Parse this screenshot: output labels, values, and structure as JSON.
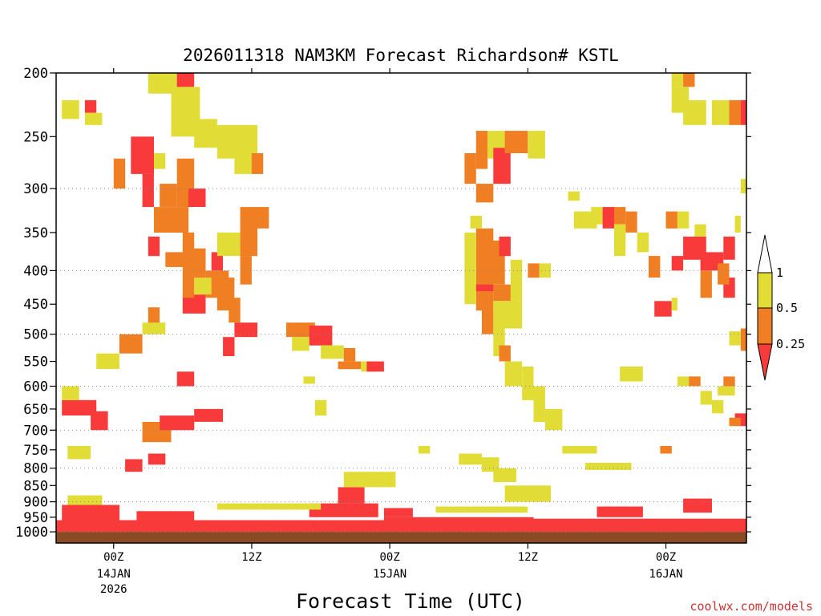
{
  "colors": {
    "red": "#f83a3a",
    "orange": "#ef7f22",
    "yellow": "#e1dc36",
    "white": "#ffffff",
    "ground": "#8b4a26",
    "credit": "#cc3333"
  },
  "chart_data": {
    "type": "heatmap",
    "title": "2026011318 NAM3KM Forecast Richardson# KSTL",
    "xlabel": "Forecast Time (UTC)",
    "ylabel": "",
    "credit": "coolwx.com/models",
    "y_scale": "log-pressure (inverted)",
    "ylim": [
      1040,
      200
    ],
    "xlim_hours": [
      19,
      79
    ],
    "y_ticks": [
      "200",
      "250",
      "300",
      "350",
      "400",
      "450",
      "500",
      "550",
      "600",
      "650",
      "700",
      "750",
      "800",
      "850",
      "900",
      "950",
      "1000"
    ],
    "x_ticks": [
      {
        "hour": 24,
        "label": "00Z",
        "date": "14JAN",
        "year": "2026"
      },
      {
        "hour": 36,
        "label": "12Z",
        "date": "",
        "year": ""
      },
      {
        "hour": 48,
        "label": "00Z",
        "date": "15JAN",
        "year": ""
      },
      {
        "hour": 60,
        "label": "12Z",
        "date": "",
        "year": ""
      },
      {
        "hour": 72,
        "label": "00Z",
        "date": "16JAN",
        "year": ""
      }
    ],
    "grid": "dotted horizontal at 300,400,500,600,700,800,900,1000 hPa",
    "legend": {
      "placement": "right",
      "labels": [
        "1",
        "0.5",
        "0.25"
      ],
      "bins": [
        {
          "range": "< 0.25",
          "color": "#f83a3a"
        },
        {
          "range": "0.25 - 0.5",
          "color": "#ef7f22"
        },
        {
          "range": "0.5 - 1",
          "color": "#e1dc36"
        },
        {
          "range": "> 1",
          "color": "#ffffff"
        }
      ]
    },
    "ground_pressure": 1000,
    "patches": [
      {
        "x0": 19.0,
        "x1": 47.5,
        "p0": 960,
        "p1": 1000,
        "c": "red"
      },
      {
        "x0": 47.5,
        "x1": 60.5,
        "p0": 950,
        "p1": 1000,
        "c": "red"
      },
      {
        "x0": 60.5,
        "x1": 79.0,
        "p0": 955,
        "p1": 1000,
        "c": "red"
      },
      {
        "x0": 19.5,
        "x1": 24.5,
        "p0": 910,
        "p1": 960,
        "c": "red"
      },
      {
        "x0": 26.0,
        "x1": 31.0,
        "p0": 930,
        "p1": 960,
        "c": "red"
      },
      {
        "x0": 41.0,
        "x1": 47.0,
        "p0": 905,
        "p1": 950,
        "c": "red"
      },
      {
        "x0": 43.5,
        "x1": 45.8,
        "p0": 855,
        "p1": 905,
        "c": "red"
      },
      {
        "x0": 47.5,
        "x1": 50.0,
        "p0": 920,
        "p1": 950,
        "c": "red"
      },
      {
        "x0": 66.0,
        "x1": 70.0,
        "p0": 915,
        "p1": 950,
        "c": "red"
      },
      {
        "x0": 73.5,
        "x1": 76.0,
        "p0": 890,
        "p1": 935,
        "c": "red"
      },
      {
        "x0": 20.0,
        "x1": 23.0,
        "p0": 880,
        "p1": 910,
        "c": "yellow"
      },
      {
        "x0": 33.0,
        "x1": 42.0,
        "p0": 905,
        "p1": 925,
        "c": "yellow"
      },
      {
        "x0": 52.0,
        "x1": 60.0,
        "p0": 915,
        "p1": 935,
        "c": "yellow"
      },
      {
        "x0": 44.0,
        "x1": 48.5,
        "p0": 810,
        "p1": 855,
        "c": "yellow"
      },
      {
        "x0": 58.0,
        "x1": 62.0,
        "p0": 850,
        "p1": 900,
        "c": "yellow"
      },
      {
        "x0": 19.5,
        "x1": 22.5,
        "p0": 630,
        "p1": 665,
        "c": "red"
      },
      {
        "x0": 22.0,
        "x1": 23.5,
        "p0": 655,
        "p1": 700,
        "c": "red"
      },
      {
        "x0": 19.5,
        "x1": 21.0,
        "p0": 600,
        "p1": 630,
        "c": "yellow"
      },
      {
        "x0": 20.0,
        "x1": 22.0,
        "p0": 740,
        "p1": 775,
        "c": "yellow"
      },
      {
        "x0": 25.0,
        "x1": 26.5,
        "p0": 775,
        "p1": 810,
        "c": "red"
      },
      {
        "x0": 26.5,
        "x1": 29.0,
        "p0": 680,
        "p1": 730,
        "c": "orange"
      },
      {
        "x0": 28.0,
        "x1": 31.0,
        "p0": 665,
        "p1": 700,
        "c": "red"
      },
      {
        "x0": 31.0,
        "x1": 33.5,
        "p0": 650,
        "p1": 680,
        "c": "red"
      },
      {
        "x0": 29.5,
        "x1": 31.0,
        "p0": 570,
        "p1": 600,
        "c": "red"
      },
      {
        "x0": 27.0,
        "x1": 28.5,
        "p0": 760,
        "p1": 790,
        "c": "red"
      },
      {
        "x0": 22.5,
        "x1": 24.5,
        "p0": 535,
        "p1": 565,
        "c": "yellow"
      },
      {
        "x0": 24.5,
        "x1": 26.5,
        "p0": 500,
        "p1": 535,
        "c": "orange"
      },
      {
        "x0": 27.0,
        "x1": 28.0,
        "p0": 455,
        "p1": 500,
        "c": "orange"
      },
      {
        "x0": 26.5,
        "x1": 28.5,
        "p0": 480,
        "p1": 500,
        "c": "yellow"
      },
      {
        "x0": 30.0,
        "x1": 32.0,
        "p0": 435,
        "p1": 465,
        "c": "red"
      },
      {
        "x0": 32.0,
        "x1": 34.0,
        "p0": 400,
        "p1": 440,
        "c": "orange"
      },
      {
        "x0": 31.0,
        "x1": 32.5,
        "p0": 410,
        "p1": 435,
        "c": "yellow"
      },
      {
        "x0": 30.5,
        "x1": 32.0,
        "p0": 370,
        "p1": 410,
        "c": "orange"
      },
      {
        "x0": 32.5,
        "x1": 33.5,
        "p0": 375,
        "p1": 400,
        "c": "red"
      },
      {
        "x0": 33.0,
        "x1": 34.5,
        "p0": 410,
        "p1": 460,
        "c": "orange"
      },
      {
        "x0": 34.5,
        "x1": 36.5,
        "p0": 480,
        "p1": 505,
        "c": "red"
      },
      {
        "x0": 33.5,
        "x1": 34.5,
        "p0": 505,
        "p1": 540,
        "c": "red"
      },
      {
        "x0": 34.0,
        "x1": 35.0,
        "p0": 440,
        "p1": 480,
        "c": "orange"
      },
      {
        "x0": 35.0,
        "x1": 36.5,
        "p0": 320,
        "p1": 380,
        "c": "orange"
      },
      {
        "x0": 36.0,
        "x1": 37.5,
        "p0": 320,
        "p1": 345,
        "c": "orange"
      },
      {
        "x0": 35.0,
        "x1": 36.0,
        "p0": 380,
        "p1": 420,
        "c": "orange"
      },
      {
        "x0": 33.0,
        "x1": 35.0,
        "p0": 350,
        "p1": 380,
        "c": "yellow"
      },
      {
        "x0": 25.5,
        "x1": 27.5,
        "p0": 250,
        "p1": 285,
        "c": "red"
      },
      {
        "x0": 24.0,
        "x1": 25.0,
        "p0": 270,
        "p1": 300,
        "c": "orange"
      },
      {
        "x0": 26.5,
        "x1": 27.5,
        "p0": 285,
        "p1": 320,
        "c": "red"
      },
      {
        "x0": 27.5,
        "x1": 30.5,
        "p0": 320,
        "p1": 350,
        "c": "orange"
      },
      {
        "x0": 28.0,
        "x1": 29.5,
        "p0": 295,
        "p1": 320,
        "c": "orange"
      },
      {
        "x0": 29.5,
        "x1": 31.0,
        "p0": 270,
        "p1": 320,
        "c": "orange"
      },
      {
        "x0": 30.0,
        "x1": 31.0,
        "p0": 350,
        "p1": 440,
        "c": "orange"
      },
      {
        "x0": 30.5,
        "x1": 32.0,
        "p0": 300,
        "p1": 320,
        "c": "red"
      },
      {
        "x0": 28.5,
        "x1": 30.5,
        "p0": 375,
        "p1": 395,
        "c": "orange"
      },
      {
        "x0": 27.0,
        "x1": 28.0,
        "p0": 355,
        "p1": 380,
        "c": "red"
      },
      {
        "x0": 21.5,
        "x1": 22.5,
        "p0": 220,
        "p1": 230,
        "c": "red"
      },
      {
        "x0": 19.5,
        "x1": 21.0,
        "p0": 220,
        "p1": 235,
        "c": "yellow"
      },
      {
        "x0": 21.5,
        "x1": 23.0,
        "p0": 230,
        "p1": 240,
        "c": "yellow"
      },
      {
        "x0": 27.0,
        "x1": 30.0,
        "p0": 200,
        "p1": 215,
        "c": "yellow"
      },
      {
        "x0": 29.0,
        "x1": 31.5,
        "p0": 210,
        "p1": 250,
        "c": "yellow"
      },
      {
        "x0": 29.5,
        "x1": 31.0,
        "p0": 200,
        "p1": 210,
        "c": "red"
      },
      {
        "x0": 31.0,
        "x1": 33.0,
        "p0": 235,
        "p1": 260,
        "c": "yellow"
      },
      {
        "x0": 33.0,
        "x1": 36.5,
        "p0": 240,
        "p1": 270,
        "c": "yellow"
      },
      {
        "x0": 34.5,
        "x1": 36.5,
        "p0": 260,
        "p1": 285,
        "c": "yellow"
      },
      {
        "x0": 36.0,
        "x1": 37.0,
        "p0": 265,
        "p1": 285,
        "c": "orange"
      },
      {
        "x0": 27.5,
        "x1": 28.5,
        "p0": 265,
        "p1": 280,
        "c": "yellow"
      },
      {
        "x0": 39.0,
        "x1": 41.5,
        "p0": 480,
        "p1": 505,
        "c": "orange"
      },
      {
        "x0": 39.5,
        "x1": 41.0,
        "p0": 505,
        "p1": 530,
        "c": "yellow"
      },
      {
        "x0": 41.0,
        "x1": 43.0,
        "p0": 485,
        "p1": 520,
        "c": "red"
      },
      {
        "x0": 42.0,
        "x1": 44.0,
        "p0": 520,
        "p1": 545,
        "c": "yellow"
      },
      {
        "x0": 44.0,
        "x1": 45.0,
        "p0": 525,
        "p1": 550,
        "c": "orange"
      },
      {
        "x0": 43.5,
        "x1": 45.5,
        "p0": 550,
        "p1": 565,
        "c": "orange"
      },
      {
        "x0": 45.5,
        "x1": 47.0,
        "p0": 550,
        "p1": 570,
        "c": "yellow"
      },
      {
        "x0": 46.0,
        "x1": 47.5,
        "p0": 550,
        "p1": 570,
        "c": "red"
      },
      {
        "x0": 41.5,
        "x1": 42.5,
        "p0": 630,
        "p1": 665,
        "c": "yellow"
      },
      {
        "x0": 40.5,
        "x1": 41.5,
        "p0": 580,
        "p1": 595,
        "c": "yellow"
      },
      {
        "x0": 55.5,
        "x1": 56.5,
        "p0": 245,
        "p1": 280,
        "c": "orange"
      },
      {
        "x0": 56.5,
        "x1": 58.0,
        "p0": 245,
        "p1": 270,
        "c": "yellow"
      },
      {
        "x0": 57.0,
        "x1": 58.5,
        "p0": 260,
        "p1": 295,
        "c": "red"
      },
      {
        "x0": 58.0,
        "x1": 60.0,
        "p0": 245,
        "p1": 265,
        "c": "orange"
      },
      {
        "x0": 60.0,
        "x1": 61.5,
        "p0": 245,
        "p1": 270,
        "c": "yellow"
      },
      {
        "x0": 54.5,
        "x1": 55.5,
        "p0": 265,
        "p1": 295,
        "c": "orange"
      },
      {
        "x0": 55.5,
        "x1": 57.0,
        "p0": 295,
        "p1": 315,
        "c": "orange"
      },
      {
        "x0": 55.5,
        "x1": 57.0,
        "p0": 345,
        "p1": 460,
        "c": "orange"
      },
      {
        "x0": 56.0,
        "x1": 58.0,
        "p0": 360,
        "p1": 420,
        "c": "orange"
      },
      {
        "x0": 57.0,
        "x1": 59.0,
        "p0": 420,
        "p1": 445,
        "c": "orange"
      },
      {
        "x0": 55.0,
        "x1": 57.0,
        "p0": 420,
        "p1": 430,
        "c": "red"
      },
      {
        "x0": 57.5,
        "x1": 58.5,
        "p0": 355,
        "p1": 380,
        "c": "red"
      },
      {
        "x0": 54.5,
        "x1": 55.5,
        "p0": 350,
        "p1": 450,
        "c": "yellow"
      },
      {
        "x0": 57.0,
        "x1": 59.5,
        "p0": 445,
        "p1": 490,
        "c": "yellow"
      },
      {
        "x0": 58.5,
        "x1": 59.5,
        "p0": 385,
        "p1": 445,
        "c": "yellow"
      },
      {
        "x0": 56.0,
        "x1": 57.0,
        "p0": 460,
        "p1": 500,
        "c": "orange"
      },
      {
        "x0": 57.0,
        "x1": 58.0,
        "p0": 490,
        "p1": 540,
        "c": "yellow"
      },
      {
        "x0": 57.5,
        "x1": 58.5,
        "p0": 520,
        "p1": 550,
        "c": "orange"
      },
      {
        "x0": 58.0,
        "x1": 59.5,
        "p0": 550,
        "p1": 600,
        "c": "yellow"
      },
      {
        "x0": 59.5,
        "x1": 60.5,
        "p0": 560,
        "p1": 630,
        "c": "yellow"
      },
      {
        "x0": 60.5,
        "x1": 61.5,
        "p0": 600,
        "p1": 680,
        "c": "yellow"
      },
      {
        "x0": 61.5,
        "x1": 63.0,
        "p0": 650,
        "p1": 700,
        "c": "yellow"
      },
      {
        "x0": 60.0,
        "x1": 61.0,
        "p0": 390,
        "p1": 410,
        "c": "orange"
      },
      {
        "x0": 61.0,
        "x1": 62.0,
        "p0": 390,
        "p1": 410,
        "c": "yellow"
      },
      {
        "x0": 55.0,
        "x1": 56.0,
        "p0": 330,
        "p1": 345,
        "c": "yellow"
      },
      {
        "x0": 63.5,
        "x1": 64.5,
        "p0": 303,
        "p1": 313,
        "c": "yellow"
      },
      {
        "x0": 64.0,
        "x1": 66.0,
        "p0": 325,
        "p1": 345,
        "c": "yellow"
      },
      {
        "x0": 65.5,
        "x1": 66.5,
        "p0": 320,
        "p1": 340,
        "c": "yellow"
      },
      {
        "x0": 66.5,
        "x1": 67.5,
        "p0": 320,
        "p1": 345,
        "c": "red"
      },
      {
        "x0": 67.5,
        "x1": 68.5,
        "p0": 320,
        "p1": 340,
        "c": "orange"
      },
      {
        "x0": 67.5,
        "x1": 68.5,
        "p0": 340,
        "p1": 380,
        "c": "yellow"
      },
      {
        "x0": 68.5,
        "x1": 69.5,
        "p0": 325,
        "p1": 350,
        "c": "orange"
      },
      {
        "x0": 69.5,
        "x1": 70.5,
        "p0": 350,
        "p1": 375,
        "c": "yellow"
      },
      {
        "x0": 70.5,
        "x1": 71.5,
        "p0": 380,
        "p1": 410,
        "c": "orange"
      },
      {
        "x0": 72.0,
        "x1": 73.0,
        "p0": 325,
        "p1": 345,
        "c": "orange"
      },
      {
        "x0": 73.0,
        "x1": 74.0,
        "p0": 325,
        "p1": 345,
        "c": "yellow"
      },
      {
        "x0": 71.0,
        "x1": 72.5,
        "p0": 445,
        "p1": 470,
        "c": "red"
      },
      {
        "x0": 72.5,
        "x1": 73.0,
        "p0": 440,
        "p1": 460,
        "c": "yellow"
      },
      {
        "x0": 72.5,
        "x1": 73.5,
        "p0": 380,
        "p1": 400,
        "c": "red"
      },
      {
        "x0": 73.5,
        "x1": 75.5,
        "p0": 355,
        "p1": 385,
        "c": "red"
      },
      {
        "x0": 75.0,
        "x1": 77.0,
        "p0": 375,
        "p1": 400,
        "c": "red"
      },
      {
        "x0": 75.0,
        "x1": 76.0,
        "p0": 400,
        "p1": 440,
        "c": "orange"
      },
      {
        "x0": 77.0,
        "x1": 78.0,
        "p0": 355,
        "p1": 385,
        "c": "red"
      },
      {
        "x0": 77.0,
        "x1": 78.0,
        "p0": 410,
        "p1": 440,
        "c": "red"
      },
      {
        "x0": 76.5,
        "x1": 77.5,
        "p0": 390,
        "p1": 420,
        "c": "orange"
      },
      {
        "x0": 78.0,
        "x1": 78.5,
        "p0": 330,
        "p1": 350,
        "c": "yellow"
      },
      {
        "x0": 74.5,
        "x1": 75.5,
        "p0": 340,
        "p1": 355,
        "c": "yellow"
      },
      {
        "x0": 72.5,
        "x1": 74.0,
        "p0": 210,
        "p1": 230,
        "c": "yellow"
      },
      {
        "x0": 73.5,
        "x1": 75.5,
        "p0": 220,
        "p1": 240,
        "c": "yellow"
      },
      {
        "x0": 76.0,
        "x1": 77.5,
        "p0": 220,
        "p1": 240,
        "c": "yellow"
      },
      {
        "x0": 77.5,
        "x1": 78.5,
        "p0": 220,
        "p1": 240,
        "c": "orange"
      },
      {
        "x0": 72.5,
        "x1": 73.5,
        "p0": 200,
        "p1": 210,
        "c": "yellow"
      },
      {
        "x0": 73.5,
        "x1": 74.5,
        "p0": 200,
        "p1": 210,
        "c": "orange"
      },
      {
        "x0": 78.5,
        "x1": 79.0,
        "p0": 220,
        "p1": 240,
        "c": "red"
      },
      {
        "x0": 78.5,
        "x1": 79.0,
        "p0": 290,
        "p1": 305,
        "c": "yellow"
      },
      {
        "x0": 78.5,
        "x1": 79.0,
        "p0": 490,
        "p1": 530,
        "c": "orange"
      },
      {
        "x0": 77.5,
        "x1": 78.5,
        "p0": 495,
        "p1": 520,
        "c": "yellow"
      },
      {
        "x0": 73.0,
        "x1": 75.0,
        "p0": 580,
        "p1": 600,
        "c": "yellow"
      },
      {
        "x0": 75.0,
        "x1": 76.0,
        "p0": 610,
        "p1": 640,
        "c": "yellow"
      },
      {
        "x0": 76.0,
        "x1": 77.0,
        "p0": 630,
        "p1": 660,
        "c": "yellow"
      },
      {
        "x0": 76.5,
        "x1": 78.0,
        "p0": 600,
        "p1": 620,
        "c": "yellow"
      },
      {
        "x0": 77.0,
        "x1": 78.0,
        "p0": 580,
        "p1": 600,
        "c": "orange"
      },
      {
        "x0": 78.0,
        "x1": 79.0,
        "p0": 660,
        "p1": 690,
        "c": "red"
      },
      {
        "x0": 77.5,
        "x1": 78.5,
        "p0": 670,
        "p1": 690,
        "c": "orange"
      },
      {
        "x0": 74.0,
        "x1": 75.0,
        "p0": 580,
        "p1": 600,
        "c": "orange"
      },
      {
        "x0": 54.0,
        "x1": 56.0,
        "p0": 760,
        "p1": 790,
        "c": "yellow"
      },
      {
        "x0": 56.0,
        "x1": 57.5,
        "p0": 770,
        "p1": 810,
        "c": "yellow"
      },
      {
        "x0": 57.0,
        "x1": 59.0,
        "p0": 800,
        "p1": 840,
        "c": "yellow"
      },
      {
        "x0": 63.0,
        "x1": 66.0,
        "p0": 740,
        "p1": 760,
        "c": "yellow"
      },
      {
        "x0": 65.0,
        "x1": 69.0,
        "p0": 785,
        "p1": 805,
        "c": "yellow"
      },
      {
        "x0": 50.5,
        "x1": 51.5,
        "p0": 740,
        "p1": 760,
        "c": "yellow"
      },
      {
        "x0": 68.0,
        "x1": 70.0,
        "p0": 560,
        "p1": 590,
        "c": "yellow"
      },
      {
        "x0": 71.5,
        "x1": 72.5,
        "p0": 740,
        "p1": 760,
        "c": "orange"
      }
    ]
  }
}
